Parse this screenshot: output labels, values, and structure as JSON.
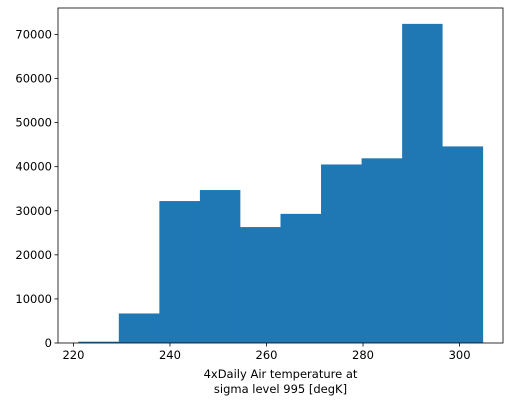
{
  "chart_data": {
    "type": "bar",
    "subtype": "histogram",
    "title": "",
    "xlabel_lines": [
      "4xDaily Air temperature at",
      "sigma level 995 [degK]"
    ],
    "ylabel": "",
    "bins": [
      {
        "x0": 221.0,
        "x1": 229.4,
        "count": 300
      },
      {
        "x0": 229.4,
        "x1": 237.8,
        "count": 6700
      },
      {
        "x0": 237.8,
        "x1": 246.2,
        "count": 32200
      },
      {
        "x0": 246.2,
        "x1": 254.5,
        "count": 34700
      },
      {
        "x0": 254.5,
        "x1": 262.9,
        "count": 26300
      },
      {
        "x0": 262.9,
        "x1": 271.3,
        "count": 29300
      },
      {
        "x0": 271.3,
        "x1": 279.7,
        "count": 40500
      },
      {
        "x0": 279.7,
        "x1": 288.1,
        "count": 41900
      },
      {
        "x0": 288.1,
        "x1": 296.4,
        "count": 72400
      },
      {
        "x0": 296.4,
        "x1": 304.8,
        "count": 44600
      }
    ],
    "xlim": [
      216.8,
      309.0
    ],
    "ylim": [
      0,
      76000
    ],
    "xticks": [
      220,
      240,
      260,
      280,
      300
    ],
    "yticks": [
      0,
      10000,
      20000,
      30000,
      40000,
      50000,
      60000,
      70000
    ],
    "grid": false,
    "legend": "none",
    "bar_color": "#1f77b4"
  }
}
